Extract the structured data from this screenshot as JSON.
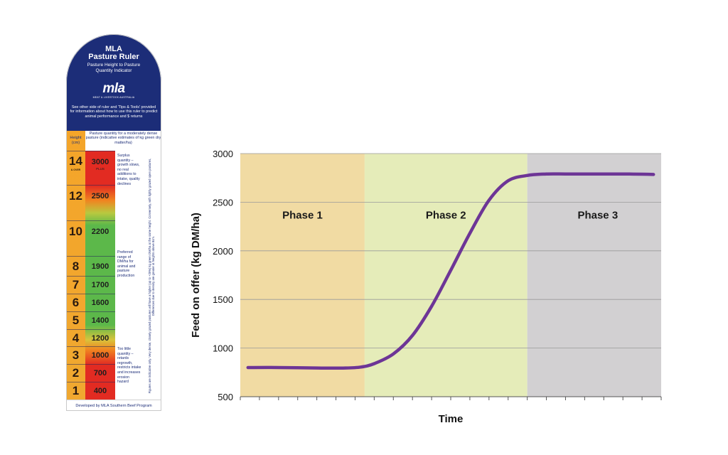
{
  "ruler": {
    "title_line1": "MLA",
    "title_line2": "Pasture Ruler",
    "subtitle": "Pasture Height to Pasture Quantity Indicator",
    "logo": "mla",
    "logo_sub": "MEAT & LIVESTOCK AUSTRALIA",
    "note": "See other side of ruler and 'Tips & Tools' provided for information about how to use this ruler to predict animal performance and $ returns",
    "height_header": "Height (cm)",
    "quantity_header": "Pasture quantity for a moderately dense pasture (indicative estimates of kg green dry matter/ha)",
    "rows": [
      {
        "height": "14",
        "height_note": "& OVER",
        "quantity": "3000",
        "quantity_note": "PLUS"
      },
      {
        "height": "12",
        "quantity": "2500"
      },
      {
        "height": "10",
        "quantity": "2200"
      },
      {
        "height": "8",
        "quantity": "1900"
      },
      {
        "height": "7",
        "quantity": "1700"
      },
      {
        "height": "6",
        "quantity": "1600"
      },
      {
        "height": "5",
        "quantity": "1400"
      },
      {
        "height": "4",
        "quantity": "1200"
      },
      {
        "height": "3",
        "quantity": "1000"
      },
      {
        "height": "2",
        "quantity": "700"
      },
      {
        "height": "1",
        "quantity": "400"
      }
    ],
    "desc_top": "Surplus quantity – growth slows, no real additions to intake, quality declines",
    "desc_mid": "Preferred range of DM/ha for animal and pasture production",
    "desc_bottom": "Too little quantity – retards regrowth, restricts intake and increases erosion hazard",
    "vertical_note": "Figures are indicative only. Very dense, closely grazed pastures will have a higher (up to +25%) kg green DM/ha at the same height. Conversely, with lightly grazed open pastures, Differences due to density are greater at heights above 8cm.",
    "footer": "Developed by MLA Southern Beef Program"
  },
  "chart_data": {
    "type": "line",
    "title": "",
    "xlabel": "Time",
    "ylabel": "Feed on offer (kg DM/ha)",
    "ylim": [
      500,
      3000
    ],
    "yticks": [
      500,
      1000,
      1500,
      2000,
      2500,
      3000
    ],
    "x_tick_count": 22,
    "grid": true,
    "phases": [
      {
        "label": "Phase 1",
        "start": 0,
        "end": 6.5,
        "color": "#f1dba3"
      },
      {
        "label": "Phase 2",
        "start": 6.5,
        "end": 15,
        "color": "#e5ecb9"
      },
      {
        "label": "Phase 3",
        "start": 15,
        "end": 22,
        "color": "#d2d0d2"
      }
    ],
    "series": [
      {
        "color": "#6d3596",
        "x": [
          0.4,
          2,
          4,
          5.5,
          6.3,
          7,
          8,
          9,
          10,
          11,
          12,
          13,
          14,
          15,
          16,
          17,
          18,
          19,
          20,
          21,
          21.6
        ],
        "values": [
          800,
          800,
          795,
          795,
          805,
          840,
          940,
          1130,
          1430,
          1800,
          2180,
          2520,
          2720,
          2775,
          2790,
          2790,
          2790,
          2790,
          2790,
          2788,
          2785
        ]
      }
    ]
  }
}
